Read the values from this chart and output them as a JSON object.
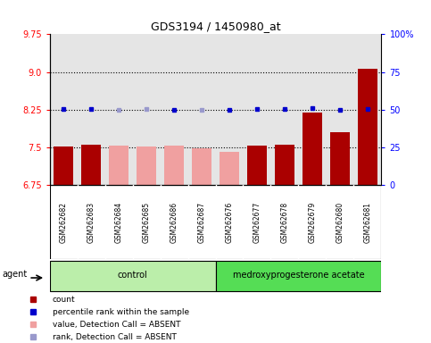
{
  "title": "GDS3194 / 1450980_at",
  "samples": [
    "GSM262682",
    "GSM262683",
    "GSM262684",
    "GSM262685",
    "GSM262686",
    "GSM262687",
    "GSM262676",
    "GSM262677",
    "GSM262678",
    "GSM262679",
    "GSM262680",
    "GSM262681"
  ],
  "bar_values": [
    7.52,
    7.55,
    7.54,
    7.52,
    7.53,
    7.49,
    7.42,
    7.53,
    7.55,
    8.2,
    7.8,
    9.06
  ],
  "bar_absent": [
    false,
    false,
    true,
    true,
    true,
    true,
    true,
    false,
    false,
    false,
    false,
    false
  ],
  "rank_values": [
    8.26,
    8.26,
    8.24,
    8.26,
    8.24,
    8.24,
    8.24,
    8.26,
    8.26,
    8.28,
    8.25,
    8.27
  ],
  "rank_absent": [
    false,
    false,
    true,
    true,
    false,
    true,
    false,
    false,
    false,
    false,
    false,
    false
  ],
  "control_count": 6,
  "ylim_left": [
    6.75,
    9.75
  ],
  "ylim_right": [
    0,
    100
  ],
  "yticks_left": [
    6.75,
    7.5,
    8.25,
    9.0,
    9.75
  ],
  "yticks_right": [
    0,
    25,
    50,
    75,
    100
  ],
  "hlines": [
    7.5,
    8.25,
    9.0
  ],
  "bar_color_present": "#aa0000",
  "bar_color_absent": "#f0a0a0",
  "rank_color_present": "#0000cc",
  "rank_color_absent": "#9999cc",
  "sample_col_bg": "#cccccc",
  "control_bg": "#bbeeaa",
  "treatment_bg": "#55dd55",
  "agent_label": "agent",
  "control_label": "control",
  "treatment_label": "medroxyprogesterone acetate",
  "legend_items": [
    {
      "label": "count",
      "color": "#aa0000"
    },
    {
      "label": "percentile rank within the sample",
      "color": "#0000cc"
    },
    {
      "label": "value, Detection Call = ABSENT",
      "color": "#f0a0a0"
    },
    {
      "label": "rank, Detection Call = ABSENT",
      "color": "#9999cc"
    }
  ]
}
